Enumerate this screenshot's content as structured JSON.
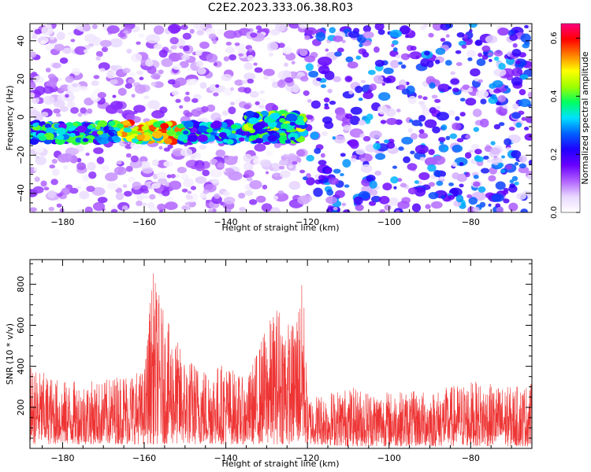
{
  "figure": {
    "title": "C2E2.2023.333.06.38.R03"
  },
  "chart_data": [
    {
      "type": "heatmap",
      "xlabel": "Height of straight line (km)",
      "ylabel": "Frequency (Hz)",
      "xlim": [
        -188,
        -65
      ],
      "ylim": [
        -50,
        49
      ],
      "xticks": [
        -180,
        -160,
        -140,
        -120,
        -100,
        -80
      ],
      "yticks": [
        -40,
        -20,
        0,
        20,
        40
      ],
      "colorbar": {
        "label": "Normalized spectral amplitude",
        "range": [
          0.0,
          0.65
        ],
        "ticks": [
          0.0,
          0.2,
          0.4,
          0.6
        ],
        "colormap": [
          "#ffffff",
          "#e8d8ff",
          "#b060ff",
          "#6a00ff",
          "#2000ff",
          "#0060ff",
          "#00e0ff",
          "#00ff60",
          "#a0ff00",
          "#ffff00",
          "#ff8000",
          "#ff0000",
          "#ff0080"
        ]
      },
      "features": [
        {
          "x_range": [
            -188,
            -121
          ],
          "y_center": -8,
          "y_halfwidth": 5,
          "amplitude": 0.3,
          "peak_x": -159,
          "peak_amplitude": 0.6
        },
        {
          "x_range": [
            -135,
            -121
          ],
          "y_center": -2,
          "y_halfwidth": 4,
          "amplitude": 0.35
        }
      ],
      "background_amplitude": {
        "x_range_low": [
          -188,
          -121
        ],
        "low": 0.07,
        "x_range_high": [
          -121,
          -65
        ],
        "high": 0.15
      }
    },
    {
      "type": "line",
      "xlabel": "Height of straight line (km)",
      "ylabel": "SNR (10 * v/v)",
      "xlim": [
        -188,
        -65
      ],
      "ylim": [
        0,
        920
      ],
      "xticks": [
        -180,
        -160,
        -140,
        -120,
        -100,
        -80
      ],
      "yticks": [
        200,
        400,
        600,
        800
      ],
      "series_color": "#ee3333",
      "envelope": {
        "x": [
          -188,
          -180,
          -170,
          -165,
          -160,
          -158,
          -155,
          -150,
          -145,
          -140,
          -135,
          -131,
          -127,
          -124,
          -121,
          -120,
          -110,
          -100,
          -90,
          -80,
          -70,
          -65
        ],
        "high": [
          400,
          330,
          330,
          380,
          380,
          880,
          650,
          450,
          400,
          420,
          330,
          560,
          720,
          600,
          840,
          260,
          300,
          280,
          280,
          330,
          300,
          320
        ],
        "low": [
          20,
          20,
          20,
          20,
          20,
          20,
          20,
          20,
          20,
          20,
          20,
          20,
          20,
          20,
          20,
          20,
          10,
          10,
          10,
          10,
          10,
          10
        ]
      }
    }
  ]
}
